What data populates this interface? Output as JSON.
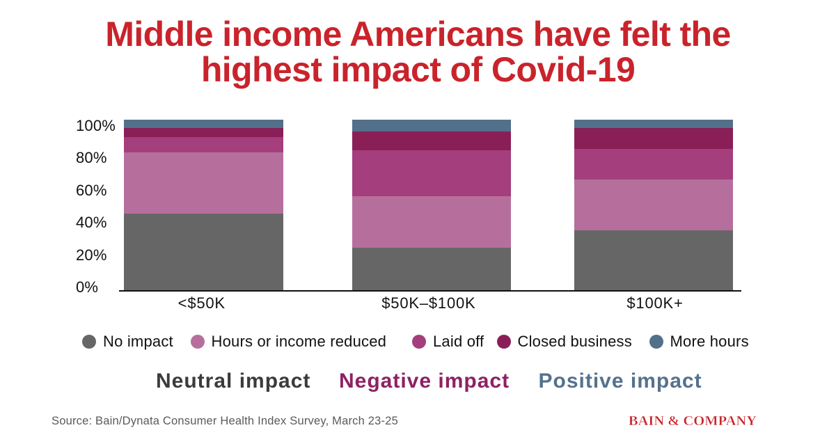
{
  "chart_data": {
    "type": "bar",
    "stacked": true,
    "title": "Middle income Americans have felt the highest impact of Covid-19",
    "title_lines": [
      "Middle income Americans have felt the",
      "highest impact of Covid-19"
    ],
    "title_color": "#c9232b",
    "categories": [
      "<$50K",
      "$50K–$100K",
      "$100K+"
    ],
    "series": [
      {
        "name": "No impact",
        "color": "#666666",
        "values": [
          45,
          25,
          35
        ]
      },
      {
        "name": "Hours or income reduced",
        "color": "#b66f9d",
        "values": [
          36,
          30,
          30
        ]
      },
      {
        "name": "Laid off",
        "color": "#a43e7c",
        "values": [
          9,
          27,
          18
        ]
      },
      {
        "name": "Closed business",
        "color": "#8a1f57",
        "values": [
          5,
          11,
          12
        ]
      },
      {
        "name": "More hours",
        "color": "#53708b",
        "values": [
          5,
          7,
          5
        ]
      }
    ],
    "ylim": [
      0,
      100
    ],
    "yticks": [
      "100%",
      "80%",
      "60%",
      "40%",
      "20%",
      "0%"
    ],
    "grid": false,
    "legend_position": "bottom",
    "legend_groups": [
      {
        "label": "Neutral impact",
        "color": "#3b3b3b"
      },
      {
        "label": "Negative impact",
        "color": "#8e2163"
      },
      {
        "label": "Positive impact",
        "color": "#55718d"
      }
    ]
  },
  "footer": {
    "source": "Source: Bain/Dynata Consumer Health Index Survey, March 23-25",
    "logo": "BAIN & COMPANY"
  }
}
